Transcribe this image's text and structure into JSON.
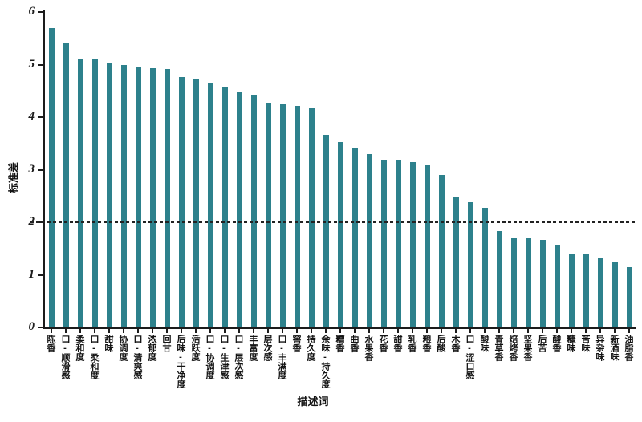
{
  "figure": {
    "background": "#ffffff"
  },
  "chart_data": {
    "type": "bar",
    "xlabel": "描述词",
    "ylabel": "标准差",
    "ylim": [
      0,
      6
    ],
    "yticks": [
      0,
      1,
      2,
      3,
      4,
      5,
      6
    ],
    "grid": false,
    "legend": false,
    "reference_line_y": 2,
    "reference_line_style": "dashed",
    "bar_color": "#2d818c",
    "axis_color": "#1c1c1c",
    "text_color": "#141414",
    "categories": [
      "陈香",
      "口-顺滑感",
      "柔和度",
      "口-柔和度",
      "甜味",
      "协调度",
      "口-清爽感",
      "浓郁度",
      "回甘",
      "后味-干净度",
      "活跃度",
      "口-协调度",
      "口-生津感",
      "口-层次感",
      "丰富度",
      "层次感",
      "口-丰满度",
      "窖香",
      "持久度",
      "余味-持久度",
      "糟香",
      "曲香",
      "水果香",
      "花香",
      "甜香",
      "乳香",
      "粮香",
      "后酸",
      "木香",
      "口-涩口感",
      "酸味",
      "青草香",
      "焙烤香",
      "坚果香",
      "后苦",
      "酸香",
      "糠味",
      "苦味",
      "异杂味",
      "新酒味",
      "油脂香"
    ],
    "values": [
      5.7,
      5.42,
      5.12,
      5.11,
      5.03,
      5.0,
      4.95,
      4.93,
      4.92,
      4.76,
      4.73,
      4.65,
      4.56,
      4.48,
      4.42,
      4.28,
      4.25,
      4.21,
      4.19,
      3.66,
      3.53,
      3.4,
      3.3,
      3.19,
      3.17,
      3.15,
      3.08,
      2.9,
      2.48,
      2.39,
      2.28,
      1.84,
      1.7,
      1.69,
      1.66,
      1.56,
      1.41,
      1.4,
      1.31,
      1.25,
      1.14
    ]
  }
}
